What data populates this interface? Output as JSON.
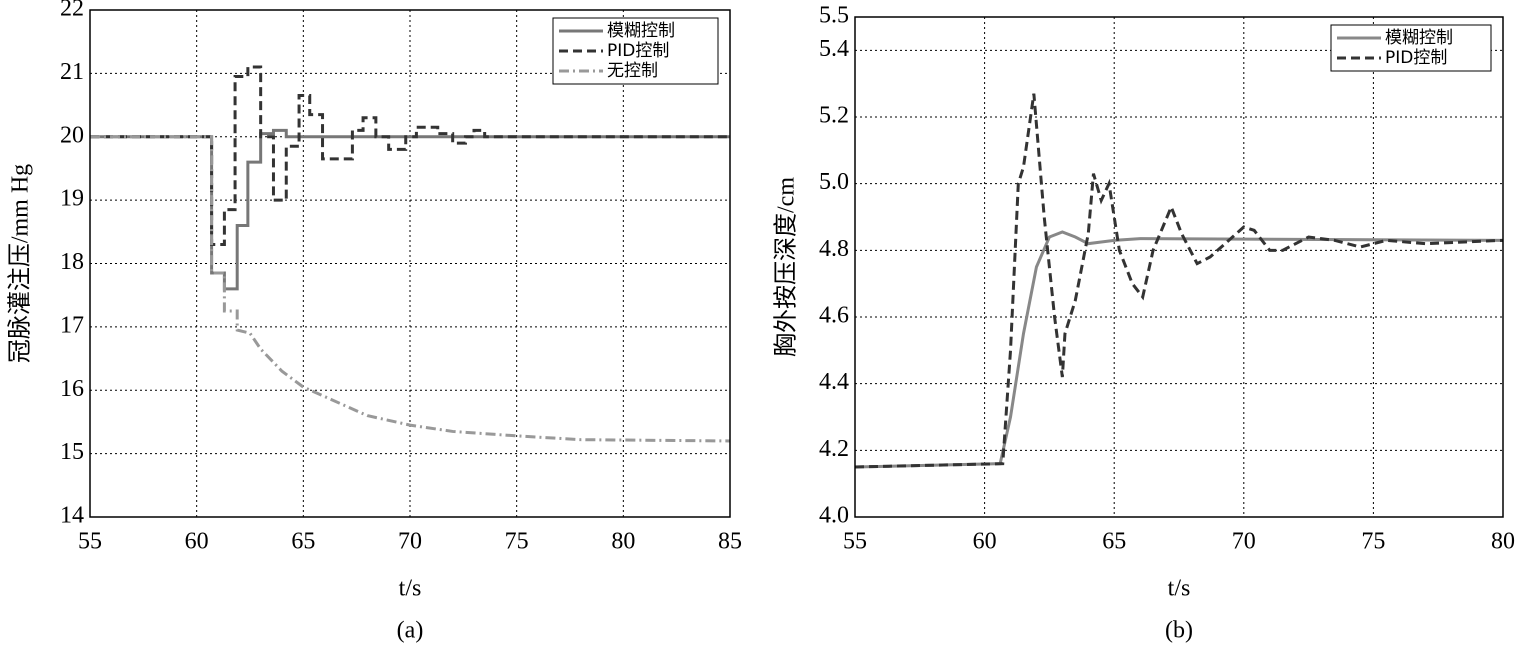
{
  "chart_data": [
    {
      "type": "line",
      "caption": "(a)",
      "xlabel": "t/s",
      "ylabel": "冠脉灌注压/mm Hg",
      "xlim": [
        55,
        85
      ],
      "ylim": [
        14,
        22
      ],
      "xticks": [
        55,
        60,
        65,
        70,
        75,
        80,
        85
      ],
      "yticks": [
        14,
        15,
        16,
        17,
        18,
        19,
        20,
        21,
        22
      ],
      "grid": true,
      "legend": "upper right",
      "series": [
        {
          "name": "模糊控制",
          "color": "#777777",
          "style": "solid",
          "x": [
            55,
            60.7,
            60.7,
            61.3,
            61.3,
            61.9,
            61.9,
            62.4,
            62.4,
            63,
            63,
            63.6,
            63.6,
            64.2,
            64.2,
            85
          ],
          "values": [
            20,
            20,
            17.85,
            17.85,
            17.6,
            17.6,
            18.6,
            18.6,
            19.6,
            19.6,
            20.05,
            20.05,
            20.1,
            20.1,
            20,
            20
          ]
        },
        {
          "name": "PID控制",
          "color": "#333333",
          "style": "dashed",
          "x": [
            55,
            60.7,
            60.7,
            61.3,
            61.3,
            61.8,
            61.8,
            62.4,
            62.4,
            63,
            63,
            63.6,
            63.6,
            64.2,
            64.2,
            64.8,
            64.8,
            65.3,
            65.3,
            65.9,
            65.9,
            67.3,
            67.3,
            67.8,
            67.8,
            68.4,
            68.4,
            69,
            69,
            69.8,
            69.8,
            70.3,
            70.3,
            71.3,
            71.3,
            72,
            72,
            72.6,
            72.6,
            73,
            73,
            73.5,
            73.5,
            85
          ],
          "values": [
            20,
            20,
            18.3,
            18.3,
            18.85,
            18.85,
            20.95,
            20.95,
            21.1,
            21.1,
            20,
            20,
            19,
            19,
            19.85,
            19.85,
            20.65,
            20.65,
            20.35,
            20.35,
            19.65,
            19.65,
            20.1,
            20.1,
            20.3,
            20.3,
            20,
            20,
            19.8,
            19.8,
            20,
            20,
            20.15,
            20.15,
            20.05,
            20.05,
            19.9,
            19.9,
            20,
            20,
            20.1,
            20.1,
            20,
            20
          ]
        },
        {
          "name": "无控制",
          "color": "#999999",
          "style": "dashdot",
          "x": [
            55,
            60.7,
            60.7,
            61.3,
            61.3,
            61.9,
            61.9,
            62.5,
            63,
            64,
            65,
            66,
            67,
            68,
            70,
            72,
            75,
            78,
            85
          ],
          "values": [
            20,
            20,
            17.85,
            17.85,
            17.25,
            17.25,
            16.95,
            16.9,
            16.65,
            16.3,
            16.05,
            15.9,
            15.75,
            15.6,
            15.45,
            15.35,
            15.28,
            15.22,
            15.2
          ]
        }
      ]
    },
    {
      "type": "line",
      "caption": "(b)",
      "xlabel": "t/s",
      "ylabel": "胸外按压深度/cm",
      "xlim": [
        55,
        80
      ],
      "ylim": [
        4,
        5.5
      ],
      "xticks": [
        55,
        60,
        65,
        70,
        75,
        80
      ],
      "yticks": [
        {
          "value": 4,
          "label": "4.0"
        },
        4.2,
        4.4,
        4.6,
        4.8,
        {
          "value": 5,
          "label": "5.0"
        },
        5.2,
        5.4,
        5.5
      ],
      "grid": true,
      "legend": "upper right",
      "series": [
        {
          "name": "模糊控制",
          "color": "#888888",
          "style": "solid",
          "x": [
            55,
            60.6,
            61,
            61.5,
            62,
            62.5,
            63,
            63.5,
            64,
            64.5,
            65,
            66,
            80
          ],
          "values": [
            4.15,
            4.16,
            4.3,
            4.55,
            4.75,
            4.84,
            4.855,
            4.84,
            4.82,
            4.825,
            4.83,
            4.835,
            4.83
          ]
        },
        {
          "name": "PID控制",
          "color": "#333333",
          "style": "dashed",
          "x": [
            55,
            60.7,
            61,
            61.3,
            61.5,
            61.9,
            62.3,
            62.7,
            63,
            63.1,
            63.5,
            64,
            64.2,
            64.5,
            64.8,
            65.2,
            65.7,
            66.1,
            66.5,
            67.2,
            67.6,
            68.2,
            68.7,
            70,
            70.4,
            71,
            71.5,
            72.5,
            73.5,
            74.5,
            75.5,
            77,
            80
          ],
          "values": [
            4.15,
            4.16,
            4.5,
            5,
            5.05,
            5.27,
            4.9,
            4.6,
            4.42,
            4.55,
            4.65,
            4.85,
            5.03,
            4.95,
            5,
            4.8,
            4.7,
            4.66,
            4.8,
            4.93,
            4.85,
            4.76,
            4.78,
            4.87,
            4.86,
            4.8,
            4.8,
            4.84,
            4.83,
            4.81,
            4.83,
            4.82,
            4.83
          ]
        }
      ]
    }
  ]
}
